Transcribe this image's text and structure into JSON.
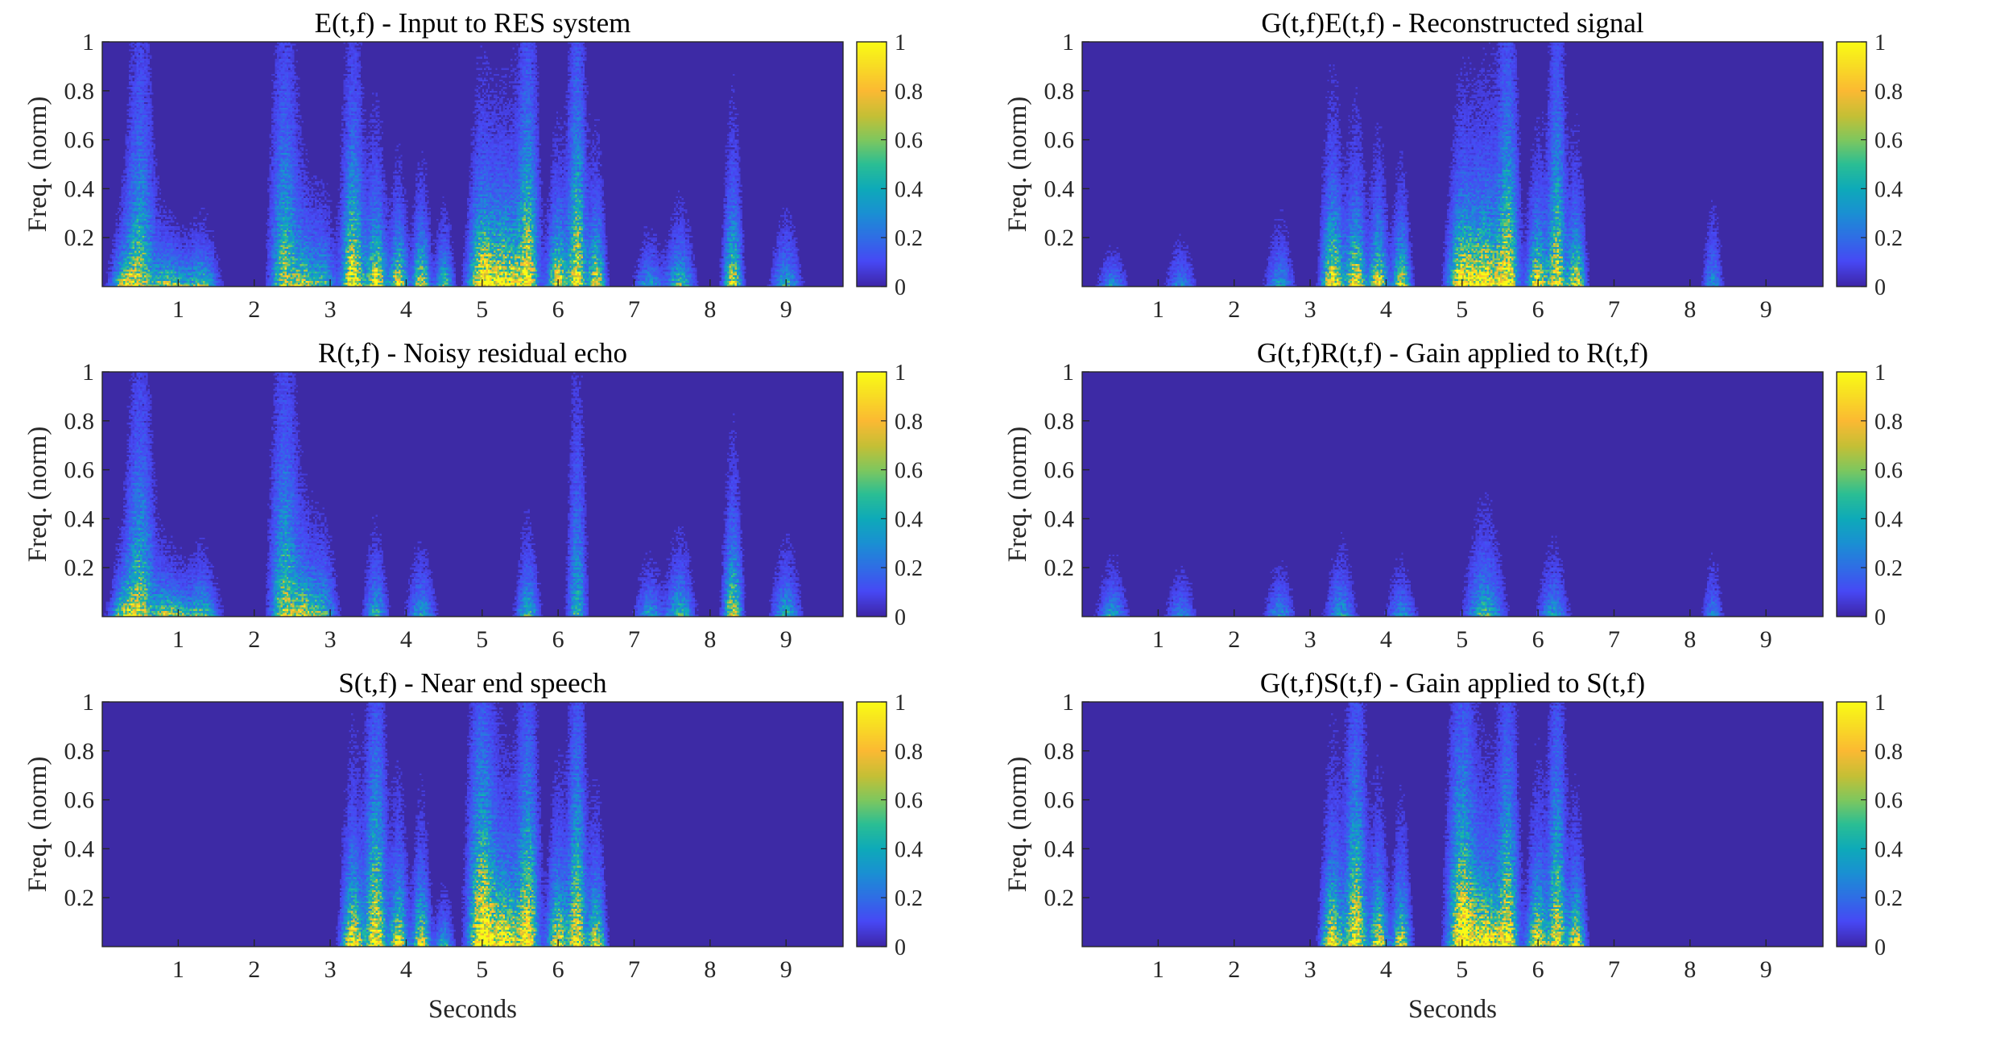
{
  "figure": {
    "colormap": [
      "#3e26a8",
      "#4748f5",
      "#2f6ee5",
      "#1a90d3",
      "#0eaab9",
      "#2bbe94",
      "#7fc75e",
      "#c6bf35",
      "#fbb933",
      "#f8db25",
      "#f9fb15"
    ],
    "background_color": "#3d2aa5"
  },
  "chart_data": [
    {
      "type": "heatmap",
      "title": "E(t,f) - Input to RES system",
      "xlabel": "",
      "ylabel": "Freq. (norm)",
      "xlim": [
        0,
        9.75
      ],
      "ylim": [
        0,
        1
      ],
      "xticks": [
        1,
        2,
        3,
        4,
        5,
        6,
        7,
        8,
        9
      ],
      "yticks": [
        0.2,
        0.4,
        0.6,
        0.8,
        1
      ],
      "colorbar": {
        "range": [
          0,
          1
        ],
        "ticks": [
          0,
          0.2,
          0.4,
          0.6,
          0.8,
          1
        ]
      },
      "activity": [
        {
          "t": 0.3,
          "w": 0.15,
          "a": 0.7,
          "ext": 0.2
        },
        {
          "t": 0.5,
          "w": 0.15,
          "a": 0.6,
          "ext": 0.9
        },
        {
          "t": 0.8,
          "w": 0.15,
          "a": 0.55,
          "ext": 0.2
        },
        {
          "t": 1.0,
          "w": 0.15,
          "a": 0.5,
          "ext": 0.15
        },
        {
          "t": 1.3,
          "w": 0.18,
          "a": 0.55,
          "ext": 0.2
        },
        {
          "t": 2.4,
          "w": 0.15,
          "a": 0.6,
          "ext": 0.95
        },
        {
          "t": 2.65,
          "w": 0.15,
          "a": 0.6,
          "ext": 0.3
        },
        {
          "t": 2.9,
          "w": 0.15,
          "a": 0.45,
          "ext": 0.3
        },
        {
          "t": 3.3,
          "w": 0.12,
          "a": 0.95,
          "ext": 0.7
        },
        {
          "t": 3.6,
          "w": 0.12,
          "a": 0.9,
          "ext": 0.4
        },
        {
          "t": 3.9,
          "w": 0.1,
          "a": 0.85,
          "ext": 0.3
        },
        {
          "t": 4.2,
          "w": 0.1,
          "a": 0.8,
          "ext": 0.3
        },
        {
          "t": 4.5,
          "w": 0.1,
          "a": 0.5,
          "ext": 0.25
        },
        {
          "t": 5.0,
          "w": 0.15,
          "a": 1.0,
          "ext": 0.45
        },
        {
          "t": 5.3,
          "w": 0.2,
          "a": 1.0,
          "ext": 0.42
        },
        {
          "t": 5.6,
          "w": 0.12,
          "a": 0.85,
          "ext": 0.9
        },
        {
          "t": 6.0,
          "w": 0.12,
          "a": 0.9,
          "ext": 0.35
        },
        {
          "t": 6.25,
          "w": 0.1,
          "a": 0.85,
          "ext": 0.95
        },
        {
          "t": 6.5,
          "w": 0.1,
          "a": 0.85,
          "ext": 0.35
        },
        {
          "t": 7.2,
          "w": 0.15,
          "a": 0.35,
          "ext": 0.2
        },
        {
          "t": 7.6,
          "w": 0.15,
          "a": 0.5,
          "ext": 0.25
        },
        {
          "t": 8.3,
          "w": 0.1,
          "a": 0.75,
          "ext": 0.45
        },
        {
          "t": 9.0,
          "w": 0.15,
          "a": 0.4,
          "ext": 0.25
        }
      ]
    },
    {
      "type": "heatmap",
      "title": "G(t,f)E(t,f) - Reconstructed signal",
      "xlabel": "",
      "ylabel": "Freq. (norm)",
      "xlim": [
        0,
        9.75
      ],
      "ylim": [
        0,
        1
      ],
      "xticks": [
        1,
        2,
        3,
        4,
        5,
        6,
        7,
        8,
        9
      ],
      "yticks": [
        0.2,
        0.4,
        0.6,
        0.8,
        1
      ],
      "colorbar": {
        "range": [
          0,
          1
        ],
        "ticks": [
          0,
          0.2,
          0.4,
          0.6,
          0.8,
          1
        ]
      },
      "activity": [
        {
          "t": 0.4,
          "w": 0.15,
          "a": 0.3,
          "ext": 0.15
        },
        {
          "t": 1.3,
          "w": 0.15,
          "a": 0.25,
          "ext": 0.2
        },
        {
          "t": 2.6,
          "w": 0.15,
          "a": 0.3,
          "ext": 0.25
        },
        {
          "t": 3.3,
          "w": 0.12,
          "a": 0.95,
          "ext": 0.45
        },
        {
          "t": 3.6,
          "w": 0.12,
          "a": 0.9,
          "ext": 0.4
        },
        {
          "t": 3.9,
          "w": 0.1,
          "a": 0.85,
          "ext": 0.35
        },
        {
          "t": 4.2,
          "w": 0.1,
          "a": 0.8,
          "ext": 0.3
        },
        {
          "t": 5.0,
          "w": 0.15,
          "a": 1.0,
          "ext": 0.42
        },
        {
          "t": 5.3,
          "w": 0.2,
          "a": 1.0,
          "ext": 0.45
        },
        {
          "t": 5.6,
          "w": 0.12,
          "a": 0.85,
          "ext": 0.9
        },
        {
          "t": 6.0,
          "w": 0.12,
          "a": 0.9,
          "ext": 0.35
        },
        {
          "t": 6.25,
          "w": 0.1,
          "a": 0.8,
          "ext": 0.9
        },
        {
          "t": 6.5,
          "w": 0.1,
          "a": 0.85,
          "ext": 0.35
        },
        {
          "t": 8.3,
          "w": 0.1,
          "a": 0.3,
          "ext": 0.3
        }
      ]
    },
    {
      "type": "heatmap",
      "title": "R(t,f) - Noisy residual echo",
      "xlabel": "",
      "ylabel": "Freq. (norm)",
      "xlim": [
        0,
        9.75
      ],
      "ylim": [
        0,
        1
      ],
      "xticks": [
        1,
        2,
        3,
        4,
        5,
        6,
        7,
        8,
        9
      ],
      "yticks": [
        0.2,
        0.4,
        0.6,
        0.8,
        1
      ],
      "colorbar": {
        "range": [
          0,
          1
        ],
        "ticks": [
          0,
          0.2,
          0.4,
          0.6,
          0.8,
          1
        ]
      },
      "activity": [
        {
          "t": 0.3,
          "w": 0.15,
          "a": 0.7,
          "ext": 0.2
        },
        {
          "t": 0.5,
          "w": 0.15,
          "a": 0.6,
          "ext": 0.9
        },
        {
          "t": 0.8,
          "w": 0.15,
          "a": 0.55,
          "ext": 0.2
        },
        {
          "t": 1.0,
          "w": 0.15,
          "a": 0.5,
          "ext": 0.15
        },
        {
          "t": 1.3,
          "w": 0.18,
          "a": 0.55,
          "ext": 0.2
        },
        {
          "t": 2.4,
          "w": 0.15,
          "a": 0.6,
          "ext": 0.95
        },
        {
          "t": 2.65,
          "w": 0.15,
          "a": 0.65,
          "ext": 0.3
        },
        {
          "t": 2.9,
          "w": 0.15,
          "a": 0.45,
          "ext": 0.3
        },
        {
          "t": 3.6,
          "w": 0.12,
          "a": 0.4,
          "ext": 0.3
        },
        {
          "t": 4.2,
          "w": 0.15,
          "a": 0.35,
          "ext": 0.25
        },
        {
          "t": 5.6,
          "w": 0.12,
          "a": 0.45,
          "ext": 0.3
        },
        {
          "t": 6.25,
          "w": 0.1,
          "a": 0.4,
          "ext": 0.9
        },
        {
          "t": 7.2,
          "w": 0.15,
          "a": 0.35,
          "ext": 0.2
        },
        {
          "t": 7.6,
          "w": 0.15,
          "a": 0.5,
          "ext": 0.25
        },
        {
          "t": 8.3,
          "w": 0.1,
          "a": 0.75,
          "ext": 0.45
        },
        {
          "t": 9.0,
          "w": 0.15,
          "a": 0.4,
          "ext": 0.25
        }
      ]
    },
    {
      "type": "heatmap",
      "title": "G(t,f)R(t,f) - Gain applied to R(t,f)",
      "xlabel": "",
      "ylabel": "Freq. (norm)",
      "xlim": [
        0,
        9.75
      ],
      "ylim": [
        0,
        1
      ],
      "xticks": [
        1,
        2,
        3,
        4,
        5,
        6,
        7,
        8,
        9
      ],
      "yticks": [
        0.2,
        0.4,
        0.6,
        0.8,
        1
      ],
      "colorbar": {
        "range": [
          0,
          1
        ],
        "ticks": [
          0,
          0.2,
          0.4,
          0.6,
          0.8,
          1
        ]
      },
      "activity": [
        {
          "t": 0.4,
          "w": 0.15,
          "a": 0.35,
          "ext": 0.2
        },
        {
          "t": 1.3,
          "w": 0.15,
          "a": 0.25,
          "ext": 0.2
        },
        {
          "t": 2.6,
          "w": 0.15,
          "a": 0.3,
          "ext": 0.2
        },
        {
          "t": 3.4,
          "w": 0.15,
          "a": 0.35,
          "ext": 0.25
        },
        {
          "t": 4.2,
          "w": 0.15,
          "a": 0.3,
          "ext": 0.2
        },
        {
          "t": 5.3,
          "w": 0.2,
          "a": 0.45,
          "ext": 0.35
        },
        {
          "t": 6.2,
          "w": 0.15,
          "a": 0.35,
          "ext": 0.25
        },
        {
          "t": 8.3,
          "w": 0.1,
          "a": 0.25,
          "ext": 0.25
        }
      ]
    },
    {
      "type": "heatmap",
      "title": "S(t,f) - Near end speech",
      "xlabel": "Seconds",
      "ylabel": "Freq. (norm)",
      "xlim": [
        0,
        9.75
      ],
      "ylim": [
        0,
        1
      ],
      "xticks": [
        1,
        2,
        3,
        4,
        5,
        6,
        7,
        8,
        9
      ],
      "yticks": [
        0.2,
        0.4,
        0.6,
        0.8,
        1
      ],
      "colorbar": {
        "range": [
          0,
          1
        ],
        "ticks": [
          0,
          0.2,
          0.4,
          0.6,
          0.8,
          1
        ]
      },
      "activity": [
        {
          "t": 3.3,
          "w": 0.12,
          "a": 0.95,
          "ext": 0.45
        },
        {
          "t": 3.6,
          "w": 0.12,
          "a": 0.9,
          "ext": 0.95
        },
        {
          "t": 3.9,
          "w": 0.1,
          "a": 0.85,
          "ext": 0.4
        },
        {
          "t": 4.2,
          "w": 0.1,
          "a": 0.8,
          "ext": 0.35
        },
        {
          "t": 4.5,
          "w": 0.1,
          "a": 0.4,
          "ext": 0.2
        },
        {
          "t": 5.0,
          "w": 0.15,
          "a": 1.0,
          "ext": 0.95
        },
        {
          "t": 5.3,
          "w": 0.2,
          "a": 1.0,
          "ext": 0.42
        },
        {
          "t": 5.6,
          "w": 0.12,
          "a": 0.85,
          "ext": 0.95
        },
        {
          "t": 6.0,
          "w": 0.12,
          "a": 0.9,
          "ext": 0.4
        },
        {
          "t": 6.25,
          "w": 0.1,
          "a": 0.85,
          "ext": 0.95
        },
        {
          "t": 6.5,
          "w": 0.1,
          "a": 0.85,
          "ext": 0.35
        }
      ]
    },
    {
      "type": "heatmap",
      "title": "G(t,f)S(t,f) - Gain applied to S(t,f)",
      "xlabel": "Seconds",
      "ylabel": "Freq. (norm)",
      "xlim": [
        0,
        9.75
      ],
      "ylim": [
        0,
        1
      ],
      "xticks": [
        1,
        2,
        3,
        4,
        5,
        6,
        7,
        8,
        9
      ],
      "yticks": [
        0.2,
        0.4,
        0.6,
        0.8,
        1
      ],
      "colorbar": {
        "range": [
          0,
          1
        ],
        "ticks": [
          0,
          0.2,
          0.4,
          0.6,
          0.8,
          1
        ]
      },
      "activity": [
        {
          "t": 3.3,
          "w": 0.12,
          "a": 0.95,
          "ext": 0.45
        },
        {
          "t": 3.6,
          "w": 0.12,
          "a": 0.9,
          "ext": 0.9
        },
        {
          "t": 3.9,
          "w": 0.1,
          "a": 0.85,
          "ext": 0.4
        },
        {
          "t": 4.2,
          "w": 0.1,
          "a": 0.8,
          "ext": 0.35
        },
        {
          "t": 5.0,
          "w": 0.15,
          "a": 1.0,
          "ext": 0.9
        },
        {
          "t": 5.3,
          "w": 0.2,
          "a": 1.0,
          "ext": 0.42
        },
        {
          "t": 5.6,
          "w": 0.12,
          "a": 0.85,
          "ext": 0.9
        },
        {
          "t": 6.0,
          "w": 0.12,
          "a": 0.9,
          "ext": 0.4
        },
        {
          "t": 6.25,
          "w": 0.1,
          "a": 0.85,
          "ext": 0.9
        },
        {
          "t": 6.5,
          "w": 0.1,
          "a": 0.85,
          "ext": 0.35
        }
      ]
    }
  ]
}
